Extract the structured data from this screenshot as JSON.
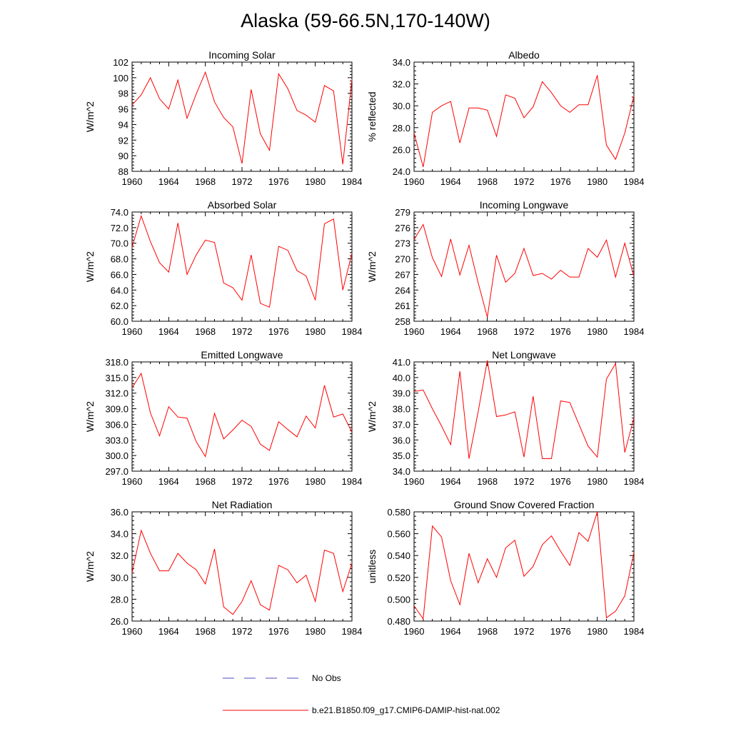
{
  "figure": {
    "title": "Alaska (59-66.5N,170-140W)"
  },
  "colors": {
    "model": "#ff0000",
    "obs": "#4b4bbf",
    "axis": "#000000"
  },
  "legend": [
    {
      "label": "No Obs",
      "style": "dashed",
      "color": "#4b4bbf"
    },
    {
      "label": "b.e21.B1850.f09_g17.CMIP6-DAMIP-hist-nat.002",
      "style": "solid",
      "color": "#ff0000"
    }
  ],
  "chart_data": [
    {
      "type": "line",
      "title": "Incoming Solar",
      "ylabel": "W/m^2",
      "xlim": [
        1960,
        1984
      ],
      "ylim": [
        88,
        102
      ],
      "xticks": [
        "1960",
        "1964",
        "1968",
        "1972",
        "1976",
        "1980",
        "1984"
      ],
      "yticks": [
        "88",
        "90",
        "92",
        "94",
        "96",
        "98",
        "100",
        "102"
      ],
      "x": [
        1960,
        1961,
        1962,
        1963,
        1964,
        1965,
        1966,
        1967,
        1968,
        1969,
        1970,
        1971,
        1972,
        1973,
        1974,
        1975,
        1976,
        1977,
        1978,
        1979,
        1980,
        1981,
        1982,
        1983,
        1984
      ],
      "series": [
        {
          "values": [
            96.5,
            97.8,
            100.0,
            97.3,
            96.0,
            99.7,
            94.8,
            97.9,
            100.7,
            96.9,
            94.9,
            93.7,
            89.0,
            98.5,
            92.8,
            90.7,
            100.5,
            98.6,
            95.8,
            95.2,
            94.3,
            99.0,
            98.3,
            88.9,
            99.8
          ]
        }
      ]
    },
    {
      "type": "line",
      "title": "Albedo",
      "ylabel": "% reflected",
      "xlim": [
        1960,
        1984
      ],
      "ylim": [
        24,
        34
      ],
      "xticks": [
        "1960",
        "1964",
        "1968",
        "1972",
        "1976",
        "1980",
        "1984"
      ],
      "yticks": [
        "24.0",
        "26.0",
        "28.0",
        "30.0",
        "32.0",
        "34.0"
      ],
      "x": [
        1960,
        1961,
        1962,
        1963,
        1964,
        1965,
        1966,
        1967,
        1968,
        1969,
        1970,
        1971,
        1972,
        1973,
        1974,
        1975,
        1976,
        1977,
        1978,
        1979,
        1980,
        1981,
        1982,
        1983,
        1984
      ],
      "series": [
        {
          "values": [
            27.5,
            24.4,
            29.4,
            30.0,
            30.4,
            26.6,
            29.8,
            29.8,
            29.6,
            27.2,
            31.0,
            30.7,
            28.9,
            29.9,
            32.2,
            31.2,
            30.0,
            29.4,
            30.1,
            30.1,
            32.8,
            26.4,
            25.1,
            27.5,
            30.9
          ]
        }
      ]
    },
    {
      "type": "line",
      "title": "Absorbed Solar",
      "ylabel": "W/m^2",
      "xlim": [
        1960,
        1984
      ],
      "ylim": [
        60,
        74
      ],
      "xticks": [
        "1960",
        "1964",
        "1968",
        "1972",
        "1976",
        "1980",
        "1984"
      ],
      "yticks": [
        "60.0",
        "62.0",
        "64.0",
        "66.0",
        "68.0",
        "70.0",
        "72.0",
        "74.0"
      ],
      "x": [
        1960,
        1961,
        1962,
        1963,
        1964,
        1965,
        1966,
        1967,
        1968,
        1969,
        1970,
        1971,
        1972,
        1973,
        1974,
        1975,
        1976,
        1977,
        1978,
        1979,
        1980,
        1981,
        1982,
        1983,
        1984
      ],
      "series": [
        {
          "values": [
            69.5,
            73.5,
            70.2,
            67.5,
            66.3,
            72.6,
            66.0,
            68.5,
            70.4,
            70.1,
            64.9,
            64.3,
            62.7,
            68.5,
            62.3,
            61.8,
            69.6,
            69.1,
            66.5,
            65.8,
            62.7,
            72.5,
            73.1,
            64.0,
            68.7
          ]
        }
      ]
    },
    {
      "type": "line",
      "title": "Incoming Longwave",
      "ylabel": "W/m^2",
      "xlim": [
        1960,
        1984
      ],
      "ylim": [
        258,
        279
      ],
      "xticks": [
        "1960",
        "1964",
        "1968",
        "1972",
        "1976",
        "1980",
        "1984"
      ],
      "yticks": [
        "258",
        "261",
        "264",
        "267",
        "270",
        "273",
        "276",
        "279"
      ],
      "x": [
        1960,
        1961,
        1962,
        1963,
        1964,
        1965,
        1966,
        1967,
        1968,
        1969,
        1970,
        1971,
        1972,
        1973,
        1974,
        1975,
        1976,
        1977,
        1978,
        1979,
        1980,
        1981,
        1982,
        1983,
        1984
      ],
      "series": [
        {
          "values": [
            273.7,
            276.6,
            270.2,
            266.6,
            273.8,
            266.9,
            272.6,
            265.4,
            258.8,
            270.7,
            265.5,
            267.2,
            272.0,
            266.8,
            267.2,
            266.1,
            267.8,
            266.5,
            266.5,
            272.0,
            270.3,
            273.6,
            266.5,
            273.0,
            266.6
          ]
        }
      ]
    },
    {
      "type": "line",
      "title": "Emitted Longwave",
      "ylabel": "W/m^2",
      "xlim": [
        1960,
        1984
      ],
      "ylim": [
        297,
        318
      ],
      "xticks": [
        "1960",
        "1964",
        "1968",
        "1972",
        "1976",
        "1980",
        "1984"
      ],
      "yticks": [
        "297.0",
        "300.0",
        "303.0",
        "306.0",
        "309.0",
        "312.0",
        "315.0",
        "318.0"
      ],
      "x": [
        1960,
        1961,
        1962,
        1963,
        1964,
        1965,
        1966,
        1967,
        1968,
        1969,
        1970,
        1971,
        1972,
        1973,
        1974,
        1975,
        1976,
        1977,
        1978,
        1979,
        1980,
        1981,
        1982,
        1983,
        1984
      ],
      "series": [
        {
          "values": [
            313.0,
            315.8,
            308.2,
            303.8,
            309.4,
            307.4,
            307.2,
            302.7,
            299.8,
            308.1,
            303.2,
            304.9,
            306.8,
            305.6,
            302.2,
            301.0,
            306.5,
            305.0,
            303.6,
            307.6,
            305.3,
            313.5,
            307.4,
            308.0,
            304.5
          ]
        }
      ]
    },
    {
      "type": "line",
      "title": "Net Longwave",
      "ylabel": "W/m^2",
      "xlim": [
        1960,
        1984
      ],
      "ylim": [
        34,
        41
      ],
      "xticks": [
        "1960",
        "1964",
        "1968",
        "1972",
        "1976",
        "1980",
        "1984"
      ],
      "yticks": [
        "34.0",
        "35.0",
        "36.0",
        "37.0",
        "38.0",
        "39.0",
        "40.0",
        "41.0"
      ],
      "x": [
        1960,
        1961,
        1962,
        1963,
        1964,
        1965,
        1966,
        1967,
        1968,
        1969,
        1970,
        1971,
        1972,
        1973,
        1974,
        1975,
        1976,
        1977,
        1978,
        1979,
        1980,
        1981,
        1982,
        1983,
        1984
      ],
      "series": [
        {
          "values": [
            39.1,
            39.2,
            38.0,
            36.9,
            35.7,
            40.4,
            34.8,
            37.8,
            41.1,
            37.5,
            37.6,
            37.8,
            34.9,
            38.8,
            34.8,
            34.8,
            38.5,
            38.4,
            37.0,
            35.6,
            34.9,
            39.9,
            40.9,
            35.2,
            37.4
          ]
        }
      ]
    },
    {
      "type": "line",
      "title": "Net Radiation",
      "ylabel": "W/m^2",
      "xlim": [
        1960,
        1984
      ],
      "ylim": [
        26,
        36
      ],
      "xticks": [
        "1960",
        "1964",
        "1968",
        "1972",
        "1976",
        "1980",
        "1984"
      ],
      "yticks": [
        "26.0",
        "28.0",
        "30.0",
        "32.0",
        "34.0",
        "36.0"
      ],
      "x": [
        1960,
        1961,
        1962,
        1963,
        1964,
        1965,
        1966,
        1967,
        1968,
        1969,
        1970,
        1971,
        1972,
        1973,
        1974,
        1975,
        1976,
        1977,
        1978,
        1979,
        1980,
        1981,
        1982,
        1983,
        1984
      ],
      "series": [
        {
          "values": [
            30.4,
            34.3,
            32.2,
            30.6,
            30.6,
            32.2,
            31.3,
            30.7,
            29.4,
            32.6,
            27.3,
            26.6,
            27.8,
            29.7,
            27.5,
            27.0,
            31.1,
            30.7,
            29.5,
            30.2,
            27.8,
            32.5,
            32.2,
            28.7,
            31.3
          ]
        }
      ]
    },
    {
      "type": "line",
      "title": "Ground Snow Covered Fraction",
      "ylabel": "unitless",
      "xlim": [
        1960,
        1984
      ],
      "ylim": [
        0.48,
        0.58
      ],
      "xticks": [
        "1960",
        "1964",
        "1968",
        "1972",
        "1976",
        "1980",
        "1984"
      ],
      "yticks": [
        "0.480",
        "0.500",
        "0.520",
        "0.540",
        "0.560",
        "0.580"
      ],
      "x": [
        1960,
        1961,
        1962,
        1963,
        1964,
        1965,
        1966,
        1967,
        1968,
        1969,
        1970,
        1971,
        1972,
        1973,
        1974,
        1975,
        1976,
        1977,
        1978,
        1979,
        1980,
        1981,
        1982,
        1983,
        1984
      ],
      "series": [
        {
          "values": [
            0.494,
            0.482,
            0.567,
            0.557,
            0.517,
            0.495,
            0.542,
            0.515,
            0.537,
            0.52,
            0.547,
            0.554,
            0.521,
            0.53,
            0.55,
            0.558,
            0.544,
            0.531,
            0.561,
            0.553,
            0.58,
            0.483,
            0.489,
            0.503,
            0.543
          ]
        }
      ]
    }
  ]
}
